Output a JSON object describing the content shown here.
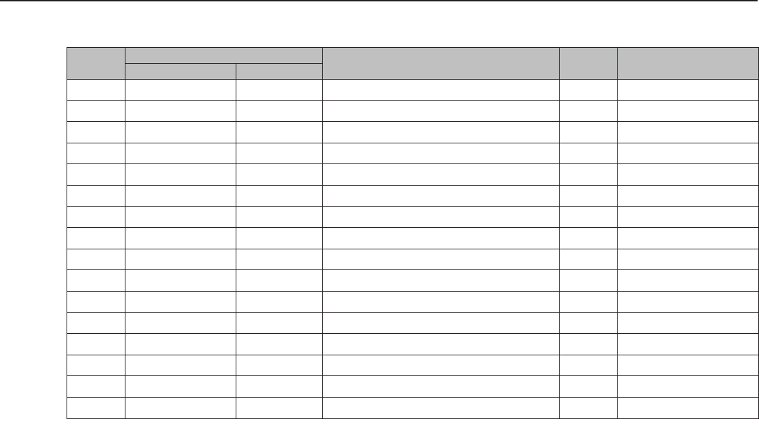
{
  "colors": {
    "header_fill": "#c0c0c0",
    "rule": "#231f20"
  },
  "table": {
    "header": {
      "col1": "",
      "group": "",
      "group_sub1": "",
      "group_sub2": "",
      "col4": "",
      "col5": "",
      "col6": ""
    },
    "rows": [
      [
        "",
        "",
        "",
        "",
        "",
        ""
      ],
      [
        "",
        "",
        "",
        "",
        "",
        ""
      ],
      [
        "",
        "",
        "",
        "",
        "",
        ""
      ],
      [
        "",
        "",
        "",
        "",
        "",
        ""
      ],
      [
        "",
        "",
        "",
        "",
        "",
        ""
      ],
      [
        "",
        "",
        "",
        "",
        "",
        ""
      ],
      [
        "",
        "",
        "",
        "",
        "",
        ""
      ],
      [
        "",
        "",
        "",
        "",
        "",
        ""
      ],
      [
        "",
        "",
        "",
        "",
        "",
        ""
      ],
      [
        "",
        "",
        "",
        "",
        "",
        ""
      ],
      [
        "",
        "",
        "",
        "",
        "",
        ""
      ],
      [
        "",
        "",
        "",
        "",
        "",
        ""
      ],
      [
        "",
        "",
        "",
        "",
        "",
        ""
      ],
      [
        "",
        "",
        "",
        "",
        "",
        ""
      ],
      [
        "",
        "",
        "",
        "",
        "",
        ""
      ],
      [
        "",
        "",
        "",
        "",
        "",
        ""
      ]
    ]
  }
}
